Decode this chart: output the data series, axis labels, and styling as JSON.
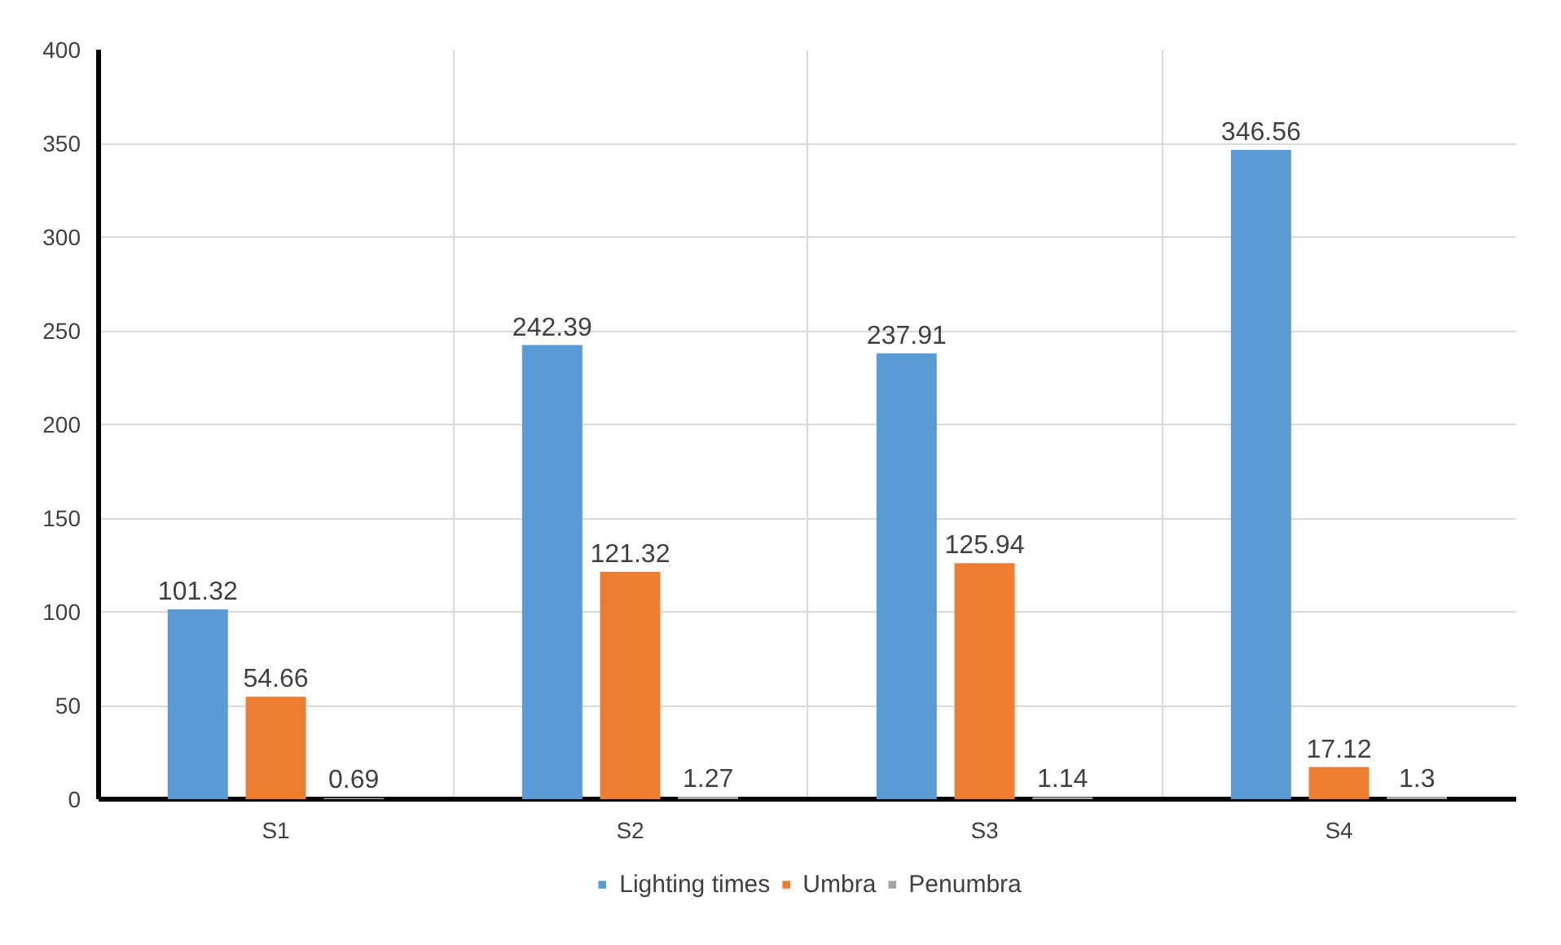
{
  "chart_data": {
    "type": "bar",
    "categories": [
      "S1",
      "S2",
      "S3",
      "S4"
    ],
    "series": [
      {
        "name": "Lighting times",
        "color": "#5b9bd5",
        "values": [
          101.32,
          242.39,
          237.91,
          346.56
        ]
      },
      {
        "name": "Umbra",
        "color": "#ed7d31",
        "values": [
          54.66,
          121.32,
          125.94,
          17.12
        ]
      },
      {
        "name": "Penumbra",
        "color": "#a5a5a5",
        "values": [
          0.69,
          1.27,
          1.14,
          1.3
        ]
      }
    ],
    "ylim": [
      0,
      400
    ],
    "yticks": [
      0,
      50,
      100,
      150,
      200,
      250,
      300,
      350,
      400
    ],
    "grid": true,
    "legend": "bottom",
    "data_labels": true
  }
}
